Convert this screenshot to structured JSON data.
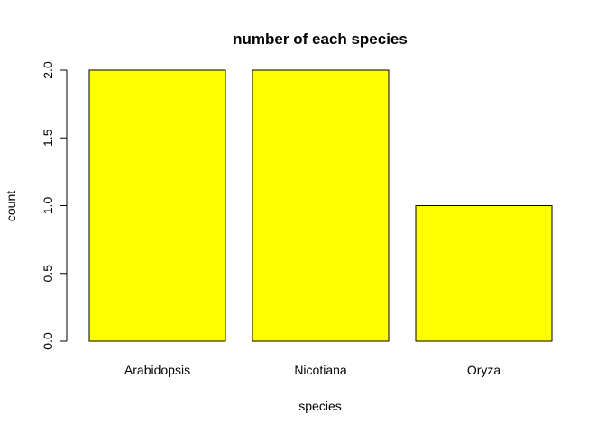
{
  "chart_data": {
    "type": "bar",
    "title": "number of each species",
    "xlabel": "species",
    "ylabel": "count",
    "categories": [
      "Arabidopsis",
      "Nicotiana",
      "Oryza"
    ],
    "values": [
      2,
      2,
      1
    ],
    "ylim": [
      0,
      2
    ],
    "yticks": [
      "0.0",
      "0.5",
      "1.0",
      "1.5",
      "2.0"
    ],
    "ytick_values": [
      0,
      0.5,
      1.0,
      1.5,
      2.0
    ],
    "bar_color": "#ffff00",
    "bar_border_color": "#000000",
    "grid": false,
    "legend": "none"
  }
}
